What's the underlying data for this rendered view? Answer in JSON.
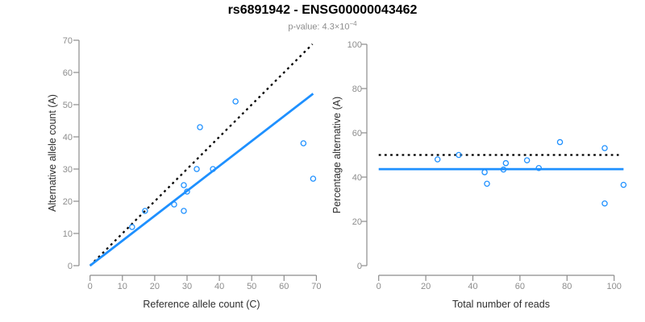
{
  "header": {
    "title": "rs6891942 - ENSG00000043462",
    "pvalue_prefix": "p-value: 4.3×10",
    "pvalue_exponent": "−4"
  },
  "colors": {
    "point": "#1e90ff",
    "fit_line": "#1e90ff",
    "reference_line": "#000000",
    "axis": "#8c8c8c",
    "tick_label": "#8c8c8c",
    "axis_title": "#2e2e2e",
    "title": "#000000",
    "subtitle": "#8d8d8d"
  },
  "chart_data": [
    {
      "id": "allele-count-scatter",
      "type": "scatter",
      "xlabel": "Reference allele count (C)",
      "ylabel": "Alternative allele count (A)",
      "xlim": [
        0,
        70
      ],
      "ylim": [
        0,
        70
      ],
      "grid": false,
      "xticks": [
        0,
        10,
        20,
        30,
        40,
        50,
        60,
        70
      ],
      "yticks": [
        0,
        10,
        20,
        30,
        40,
        50,
        60,
        70
      ],
      "points": [
        [
          45,
          51
        ],
        [
          34,
          43
        ],
        [
          66,
          38
        ],
        [
          33,
          30
        ],
        [
          38,
          30
        ],
        [
          69,
          27
        ],
        [
          29,
          25
        ],
        [
          30,
          23
        ],
        [
          26,
          19
        ],
        [
          29,
          17
        ],
        [
          17,
          17
        ],
        [
          13,
          12
        ]
      ],
      "lines": [
        {
          "name": "identity-line",
          "style": "dotted",
          "color": "#000000",
          "from": [
            0,
            0
          ],
          "to": [
            68.8,
            68.8
          ]
        },
        {
          "name": "fit-line",
          "style": "solid",
          "color": "#1e90ff",
          "from": [
            0,
            0
          ],
          "to": [
            69,
            53.4
          ]
        }
      ]
    },
    {
      "id": "percentage-vs-reads-scatter",
      "type": "scatter",
      "xlabel": "Total number of reads",
      "ylabel": "Percentage alternative (A)",
      "xlim": [
        0,
        104
      ],
      "ylim": [
        0,
        100
      ],
      "grid": false,
      "xticks": [
        0,
        20,
        40,
        60,
        80,
        100
      ],
      "yticks": [
        0,
        20,
        40,
        60,
        80,
        100
      ],
      "points": [
        [
          25,
          48
        ],
        [
          34,
          50
        ],
        [
          45,
          42.2
        ],
        [
          46,
          37
        ],
        [
          53,
          43.4
        ],
        [
          54,
          46.3
        ],
        [
          63,
          47.6
        ],
        [
          68,
          44.1
        ],
        [
          77,
          55.8
        ],
        [
          96,
          53.1
        ],
        [
          96,
          28.1
        ],
        [
          104,
          36.5
        ]
      ],
      "lines": [
        {
          "name": "null-line",
          "style": "dotted",
          "color": "#000000",
          "from": [
            0,
            50
          ],
          "to": [
            102,
            50
          ]
        },
        {
          "name": "fit-line",
          "style": "solid",
          "color": "#1e90ff",
          "from": [
            0,
            43.6
          ],
          "to": [
            104,
            43.6
          ]
        }
      ]
    }
  ]
}
